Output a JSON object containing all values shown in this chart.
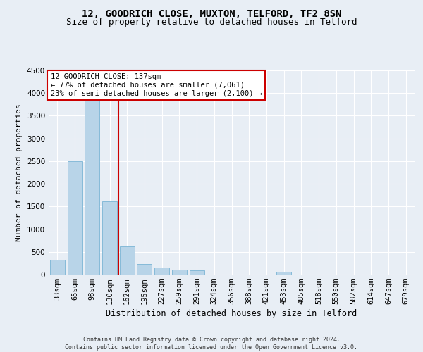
{
  "title1": "12, GOODRICH CLOSE, MUXTON, TELFORD, TF2 8SN",
  "title2": "Size of property relative to detached houses in Telford",
  "xlabel": "Distribution of detached houses by size in Telford",
  "ylabel": "Number of detached properties",
  "categories": [
    "33sqm",
    "65sqm",
    "98sqm",
    "130sqm",
    "162sqm",
    "195sqm",
    "227sqm",
    "259sqm",
    "291sqm",
    "324sqm",
    "356sqm",
    "388sqm",
    "421sqm",
    "453sqm",
    "485sqm",
    "518sqm",
    "550sqm",
    "582sqm",
    "614sqm",
    "647sqm",
    "679sqm"
  ],
  "values": [
    320,
    2500,
    3850,
    1620,
    620,
    230,
    160,
    110,
    90,
    0,
    0,
    0,
    0,
    60,
    0,
    0,
    0,
    0,
    0,
    0,
    0
  ],
  "bar_color": "#b8d4e8",
  "bar_edge_color": "#7ab4d4",
  "vline_color": "#cc0000",
  "vline_pos": 3.5,
  "annotation_text": "12 GOODRICH CLOSE: 137sqm\n← 77% of detached houses are smaller (7,061)\n23% of semi-detached houses are larger (2,100) →",
  "annotation_box_color": "#ffffff",
  "annotation_box_edge_color": "#cc0000",
  "ylim": [
    0,
    4500
  ],
  "yticks": [
    0,
    500,
    1000,
    1500,
    2000,
    2500,
    3000,
    3500,
    4000,
    4500
  ],
  "footer": "Contains HM Land Registry data © Crown copyright and database right 2024.\nContains public sector information licensed under the Open Government Licence v3.0.",
  "bg_color": "#e8eef5",
  "plot_bg_color": "#e8eef5",
  "grid_color": "#ffffff",
  "title1_fontsize": 10,
  "title2_fontsize": 9,
  "xlabel_fontsize": 8.5,
  "ylabel_fontsize": 8,
  "tick_fontsize": 7.5,
  "annotation_fontsize": 7.5,
  "footer_fontsize": 6
}
